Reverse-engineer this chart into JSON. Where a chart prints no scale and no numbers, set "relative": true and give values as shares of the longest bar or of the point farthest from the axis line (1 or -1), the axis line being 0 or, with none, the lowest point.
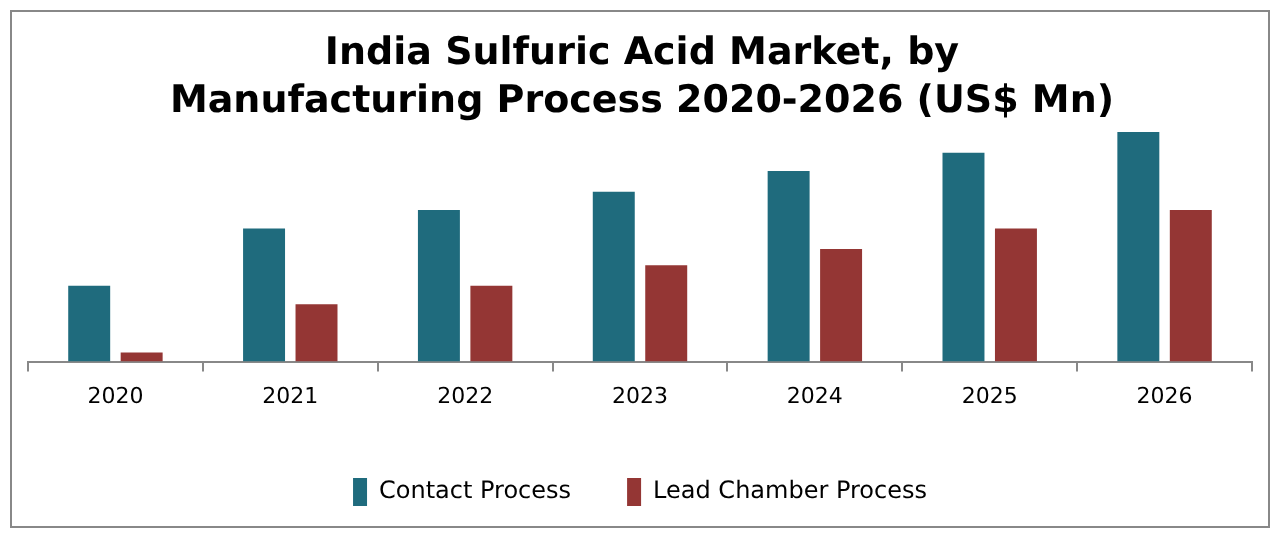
{
  "chart_data": {
    "type": "bar",
    "title": "India Sulfuric Acid Market, by Manufacturing Process 2020-2026 (US$ Mn)",
    "relative": true,
    "categories": [
      "2020",
      "2021",
      "2022",
      "2023",
      "2024",
      "2025",
      "2026"
    ],
    "series": [
      {
        "name": "Contact Process",
        "color": "#1f6b7d",
        "values": [
          0.33,
          0.58,
          0.66,
          0.74,
          0.83,
          0.91,
          1
        ]
      },
      {
        "name": "Lead Chamber Process",
        "color": "#943634",
        "values": [
          0.04,
          0.25,
          0.33,
          0.42,
          0.49,
          0.58,
          0.66
        ]
      }
    ],
    "legend": "bottom",
    "grid": false
  }
}
